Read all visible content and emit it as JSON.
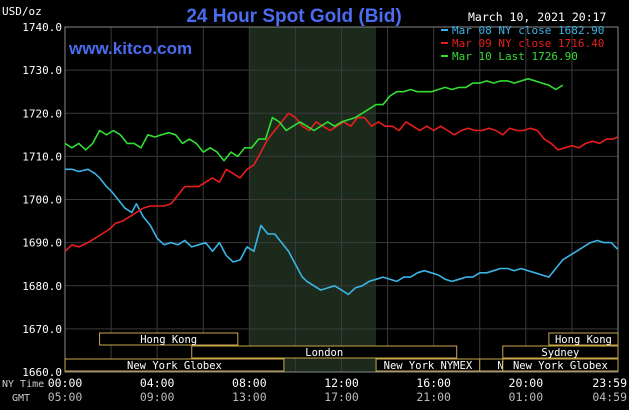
{
  "header": {
    "unit": "USD/oz",
    "title": "24 Hour Spot Gold (Bid)",
    "datetime": "March 10, 2021 20:17",
    "website": "www.kitco.com"
  },
  "legend": [
    {
      "label": "Mar 08 NY close 1682.90",
      "color": "#3ab4e6"
    },
    {
      "label": "Mar 09 NY close 1716.40",
      "color": "#e81e1e"
    },
    {
      "label": "Mar 10 Last 1726.90",
      "color": "#33dd33"
    }
  ],
  "axis_captions": {
    "ny_time": "NY Time",
    "gmt": "GMT"
  },
  "sessions": [
    {
      "label": "Hong Kong",
      "start": 1.5,
      "end": 7.5
    },
    {
      "label": "London",
      "start": 5.5,
      "end": 17.0
    },
    {
      "label": "New York Globex",
      "start": 0.0,
      "end": 9.5
    },
    {
      "label": "New York NYMEX",
      "start": 13.5,
      "end": 18.0
    },
    {
      "label": "NY Globex",
      "start": 18.0,
      "end": 22.0
    },
    {
      "label": "Hong Kong",
      "start": 21.0,
      "end": 24.0
    },
    {
      "label": "Sydney",
      "start": 19.0,
      "end": 24.0
    },
    {
      "label": "New York Globex",
      "start": 19.0,
      "end": 24.0
    }
  ],
  "chart_data": {
    "type": "line",
    "ylim": [
      1660,
      1740
    ],
    "xlim": [
      0,
      24
    ],
    "yticks": [
      1660,
      1670,
      1680,
      1690,
      1700,
      1710,
      1720,
      1730,
      1740
    ],
    "ytick_labels": [
      "1660.0",
      "1670.0",
      "1680.0",
      "1690.0",
      "1700.0",
      "1710.0",
      "1720.0",
      "1730.0",
      "1740.0"
    ],
    "xticks": [
      0,
      4,
      8,
      12,
      16,
      20,
      24
    ],
    "xtick_labels_ny": [
      "00:00",
      "04:00",
      "08:00",
      "12:00",
      "16:00",
      "20:00",
      "23:59"
    ],
    "xtick_labels_gmt": [
      "05:00",
      "09:00",
      "13:00",
      "17:00",
      "21:00",
      "01:00",
      "04:59"
    ],
    "grid": true,
    "highlight_x": [
      8.0,
      13.5
    ],
    "series": [
      {
        "name": "Mar 08 NY close 1682.90",
        "color": "#3ab4e6",
        "x": [
          0,
          0.3,
          0.6,
          1,
          1.3,
          1.5,
          1.8,
          2,
          2.3,
          2.6,
          2.9,
          3.1,
          3.4,
          3.7,
          4,
          4.3,
          4.6,
          4.9,
          5.2,
          5.5,
          5.8,
          6.1,
          6.4,
          6.7,
          7,
          7.3,
          7.6,
          7.9,
          8.2,
          8.5,
          8.8,
          9.1,
          9.4,
          9.7,
          10,
          10.3,
          10.5,
          10.8,
          11.1,
          11.4,
          11.7,
          12,
          12.3,
          12.6,
          12.9,
          13.2,
          13.5,
          13.8,
          14.1,
          14.4,
          14.7,
          15,
          15.3,
          15.6,
          15.9,
          16.2,
          16.5,
          16.8,
          17.1,
          17.4,
          17.7,
          18,
          18.3,
          18.6,
          18.9,
          19.2,
          19.5,
          19.8,
          20.1,
          20.4,
          20.7,
          21,
          21.3,
          21.6,
          21.9,
          22.2,
          22.5,
          22.8,
          23.1,
          23.4,
          23.7,
          23.98
        ],
        "y": [
          1707,
          1707,
          1706.5,
          1707,
          1706,
          1705,
          1703,
          1702,
          1700,
          1698,
          1697,
          1699,
          1696,
          1694,
          1691,
          1689.5,
          1690,
          1689.5,
          1690.5,
          1689,
          1689.5,
          1690,
          1688,
          1690,
          1687,
          1685.5,
          1686,
          1689,
          1688,
          1694,
          1692,
          1692,
          1690,
          1688,
          1685,
          1682,
          1681,
          1680,
          1679,
          1679.5,
          1680,
          1679,
          1678,
          1679.5,
          1680,
          1681,
          1681.5,
          1682,
          1681.5,
          1681,
          1682,
          1682,
          1683,
          1683.5,
          1683,
          1682.5,
          1681.5,
          1681,
          1681.5,
          1682,
          1682,
          1683,
          1683,
          1683.5,
          1684,
          1684,
          1683.5,
          1684,
          1683.5,
          1683,
          1682.5,
          1682,
          1684,
          1686,
          1687,
          1688,
          1689,
          1690,
          1690.5,
          1690,
          1690,
          1688.5
        ]
      },
      {
        "name": "Mar 09 NY close 1716.40",
        "color": "#e81e1e",
        "x": [
          0,
          0.3,
          0.6,
          1,
          1.3,
          1.6,
          1.9,
          2.2,
          2.5,
          2.8,
          3.1,
          3.4,
          3.7,
          4,
          4.3,
          4.6,
          4.9,
          5.2,
          5.5,
          5.8,
          6.1,
          6.4,
          6.7,
          7,
          7.3,
          7.6,
          7.9,
          8.2,
          8.5,
          8.8,
          9.1,
          9.4,
          9.7,
          10,
          10.3,
          10.6,
          10.9,
          11.2,
          11.5,
          11.8,
          12.1,
          12.4,
          12.7,
          13,
          13.3,
          13.6,
          13.9,
          14.2,
          14.5,
          14.8,
          15.1,
          15.4,
          15.7,
          16,
          16.3,
          16.6,
          16.9,
          17.2,
          17.5,
          17.8,
          18.1,
          18.4,
          18.7,
          19,
          19.3,
          19.6,
          19.9,
          20.2,
          20.5,
          20.8,
          21.1,
          21.4,
          21.7,
          22,
          22.3,
          22.6,
          22.9,
          23.2,
          23.5,
          23.8,
          23.98
        ],
        "y": [
          1688,
          1689.5,
          1689,
          1690,
          1691,
          1692,
          1693,
          1694.5,
          1695,
          1696,
          1697,
          1698,
          1698.5,
          1698.5,
          1698.5,
          1699,
          1701,
          1703,
          1703,
          1703,
          1704,
          1705,
          1704,
          1707,
          1706,
          1705,
          1707,
          1708,
          1711,
          1714,
          1716,
          1718,
          1720,
          1719,
          1717,
          1716,
          1718,
          1717,
          1716,
          1717,
          1718,
          1717,
          1719,
          1719,
          1717,
          1718,
          1717,
          1717,
          1716,
          1718,
          1717,
          1716,
          1717,
          1716,
          1717,
          1716,
          1715,
          1716,
          1716.5,
          1716,
          1716,
          1716.5,
          1716,
          1715,
          1716.5,
          1716,
          1716,
          1716.5,
          1716,
          1714,
          1713,
          1711.5,
          1712,
          1712.5,
          1712,
          1713,
          1713.5,
          1713,
          1714,
          1714,
          1714.5
        ]
      },
      {
        "name": "Mar 10 Last 1726.90",
        "color": "#33dd33",
        "x": [
          0,
          0.3,
          0.6,
          0.9,
          1.2,
          1.5,
          1.8,
          2.1,
          2.4,
          2.7,
          3,
          3.3,
          3.6,
          3.9,
          4.2,
          4.5,
          4.8,
          5.1,
          5.4,
          5.7,
          6,
          6.3,
          6.6,
          6.9,
          7.2,
          7.5,
          7.8,
          8.1,
          8.4,
          8.7,
          9,
          9.3,
          9.6,
          9.9,
          10.2,
          10.5,
          10.8,
          11.1,
          11.4,
          11.7,
          12,
          12.3,
          12.6,
          12.9,
          13.2,
          13.5,
          13.8,
          14.1,
          14.4,
          14.7,
          15,
          15.3,
          15.6,
          15.9,
          16.2,
          16.5,
          16.8,
          17.1,
          17.4,
          17.7,
          18,
          18.3,
          18.6,
          18.9,
          19.2,
          19.5,
          19.8,
          20.1,
          20.4,
          20.7,
          21,
          21.3,
          21.6
        ],
        "y": [
          1713,
          1712,
          1713,
          1711.5,
          1713,
          1716,
          1715,
          1716,
          1715,
          1713,
          1713,
          1712,
          1715,
          1714.5,
          1715,
          1715.5,
          1715,
          1713,
          1714,
          1713,
          1711,
          1712,
          1711,
          1709,
          1711,
          1710,
          1712,
          1712,
          1714,
          1714,
          1719,
          1718,
          1716,
          1717,
          1718,
          1717,
          1716,
          1717,
          1718,
          1717,
          1718,
          1718.5,
          1719,
          1720,
          1721,
          1722,
          1722,
          1724,
          1725,
          1725,
          1725.5,
          1725,
          1725,
          1725,
          1725.5,
          1726,
          1725.5,
          1726,
          1726,
          1727,
          1727,
          1727.5,
          1727,
          1727.5,
          1727.5,
          1727,
          1727.5,
          1728,
          1727.5,
          1727,
          1726.5,
          1725.5,
          1726.5
        ]
      }
    ]
  }
}
